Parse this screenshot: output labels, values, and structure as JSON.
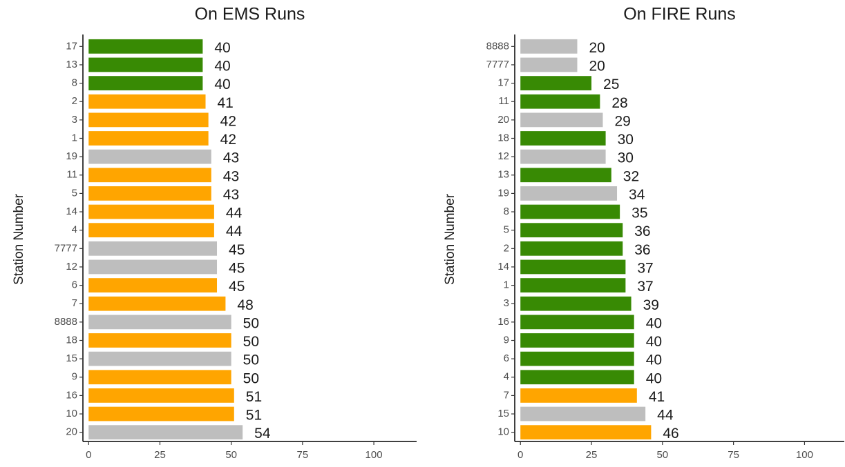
{
  "chart_data": [
    {
      "type": "barh",
      "title": "On EMS Runs",
      "y_label": "Station Number",
      "categories": [
        "17",
        "13",
        "8",
        "2",
        "3",
        "1",
        "19",
        "11",
        "5",
        "14",
        "4",
        "7777",
        "12",
        "6",
        "7",
        "8888",
        "18",
        "15",
        "9",
        "16",
        "10",
        "20"
      ],
      "values": [
        40,
        40,
        40,
        41,
        42,
        42,
        43,
        43,
        43,
        44,
        44,
        45,
        45,
        45,
        48,
        50,
        50,
        50,
        50,
        51,
        51,
        54
      ],
      "colors": [
        "#388a04",
        "#388a04",
        "#388a04",
        "#ffa500",
        "#ffa500",
        "#ffa500",
        "#bebebe",
        "#ffa500",
        "#ffa500",
        "#ffa500",
        "#ffa500",
        "#bebebe",
        "#bebebe",
        "#ffa500",
        "#ffa500",
        "#bebebe",
        "#ffa500",
        "#bebebe",
        "#ffa500",
        "#ffa500",
        "#ffa500",
        "#bebebe"
      ],
      "xlim": [
        -2,
        115
      ],
      "xticks": [
        0,
        25,
        50,
        75,
        100
      ]
    },
    {
      "type": "barh",
      "title": "On FIRE Runs",
      "y_label": "Station Number",
      "categories": [
        "8888",
        "7777",
        "17",
        "11",
        "20",
        "18",
        "12",
        "13",
        "19",
        "8",
        "5",
        "2",
        "14",
        "1",
        "3",
        "16",
        "9",
        "6",
        "4",
        "7",
        "15",
        "10"
      ],
      "values": [
        20,
        20,
        25,
        28,
        29,
        30,
        30,
        32,
        34,
        35,
        36,
        36,
        37,
        37,
        39,
        40,
        40,
        40,
        40,
        41,
        44,
        46
      ],
      "colors": [
        "#bebebe",
        "#bebebe",
        "#388a04",
        "#388a04",
        "#bebebe",
        "#388a04",
        "#bebebe",
        "#388a04",
        "#bebebe",
        "#388a04",
        "#388a04",
        "#388a04",
        "#388a04",
        "#388a04",
        "#388a04",
        "#388a04",
        "#388a04",
        "#388a04",
        "#388a04",
        "#ffa500",
        "#bebebe",
        "#ffa500"
      ],
      "xlim": [
        -2,
        114
      ],
      "xticks": [
        0,
        25,
        50,
        75,
        100
      ]
    }
  ]
}
